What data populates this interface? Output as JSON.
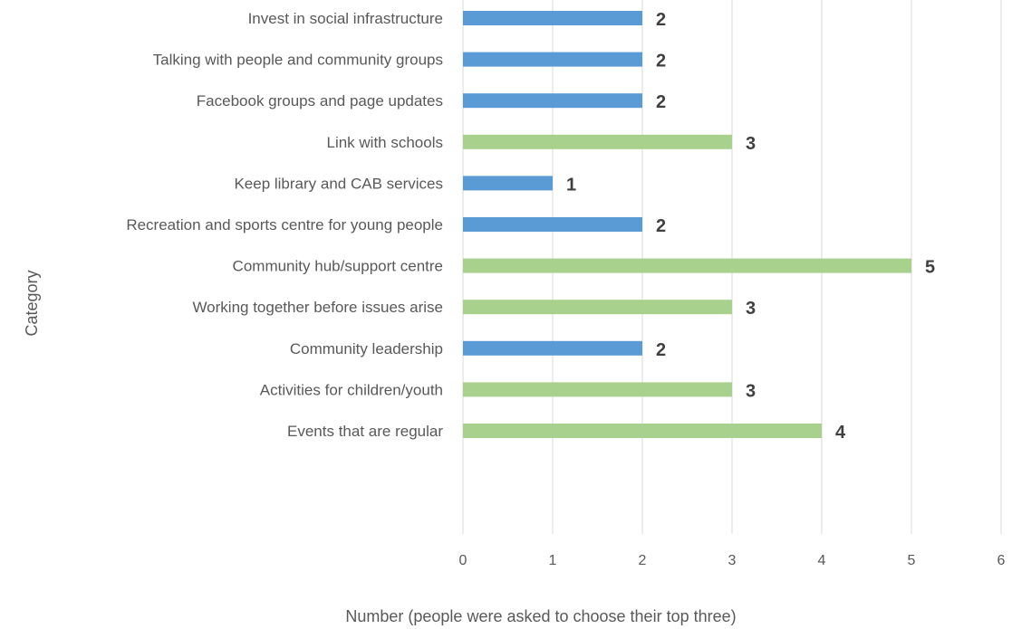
{
  "chart_data": {
    "type": "bar",
    "orientation": "horizontal",
    "categories": [
      "Invest in social infrastructure",
      "Talking with people and community groups",
      "Facebook groups and page updates",
      "Link with schools",
      "Keep library and CAB services",
      "Recreation and sports centre for young people",
      "Community hub/support centre",
      "Working together before issues arise",
      "Community leadership",
      "Activities for children/youth",
      "Events that are regular"
    ],
    "values": [
      2,
      2,
      2,
      3,
      1,
      2,
      5,
      3,
      2,
      3,
      4
    ],
    "bar_colors": [
      "#5b9bd5",
      "#5b9bd5",
      "#5b9bd5",
      "#a9d18e",
      "#5b9bd5",
      "#5b9bd5",
      "#a9d18e",
      "#a9d18e",
      "#5b9bd5",
      "#a9d18e",
      "#a9d18e"
    ],
    "xlabel": "Number (people were asked to choose their top three)",
    "ylabel": "Category",
    "xlim": [
      0,
      6
    ],
    "xticks": [
      "0",
      "1",
      "2",
      "3",
      "4",
      "5",
      "6"
    ],
    "grid": true,
    "data_labels": true
  }
}
